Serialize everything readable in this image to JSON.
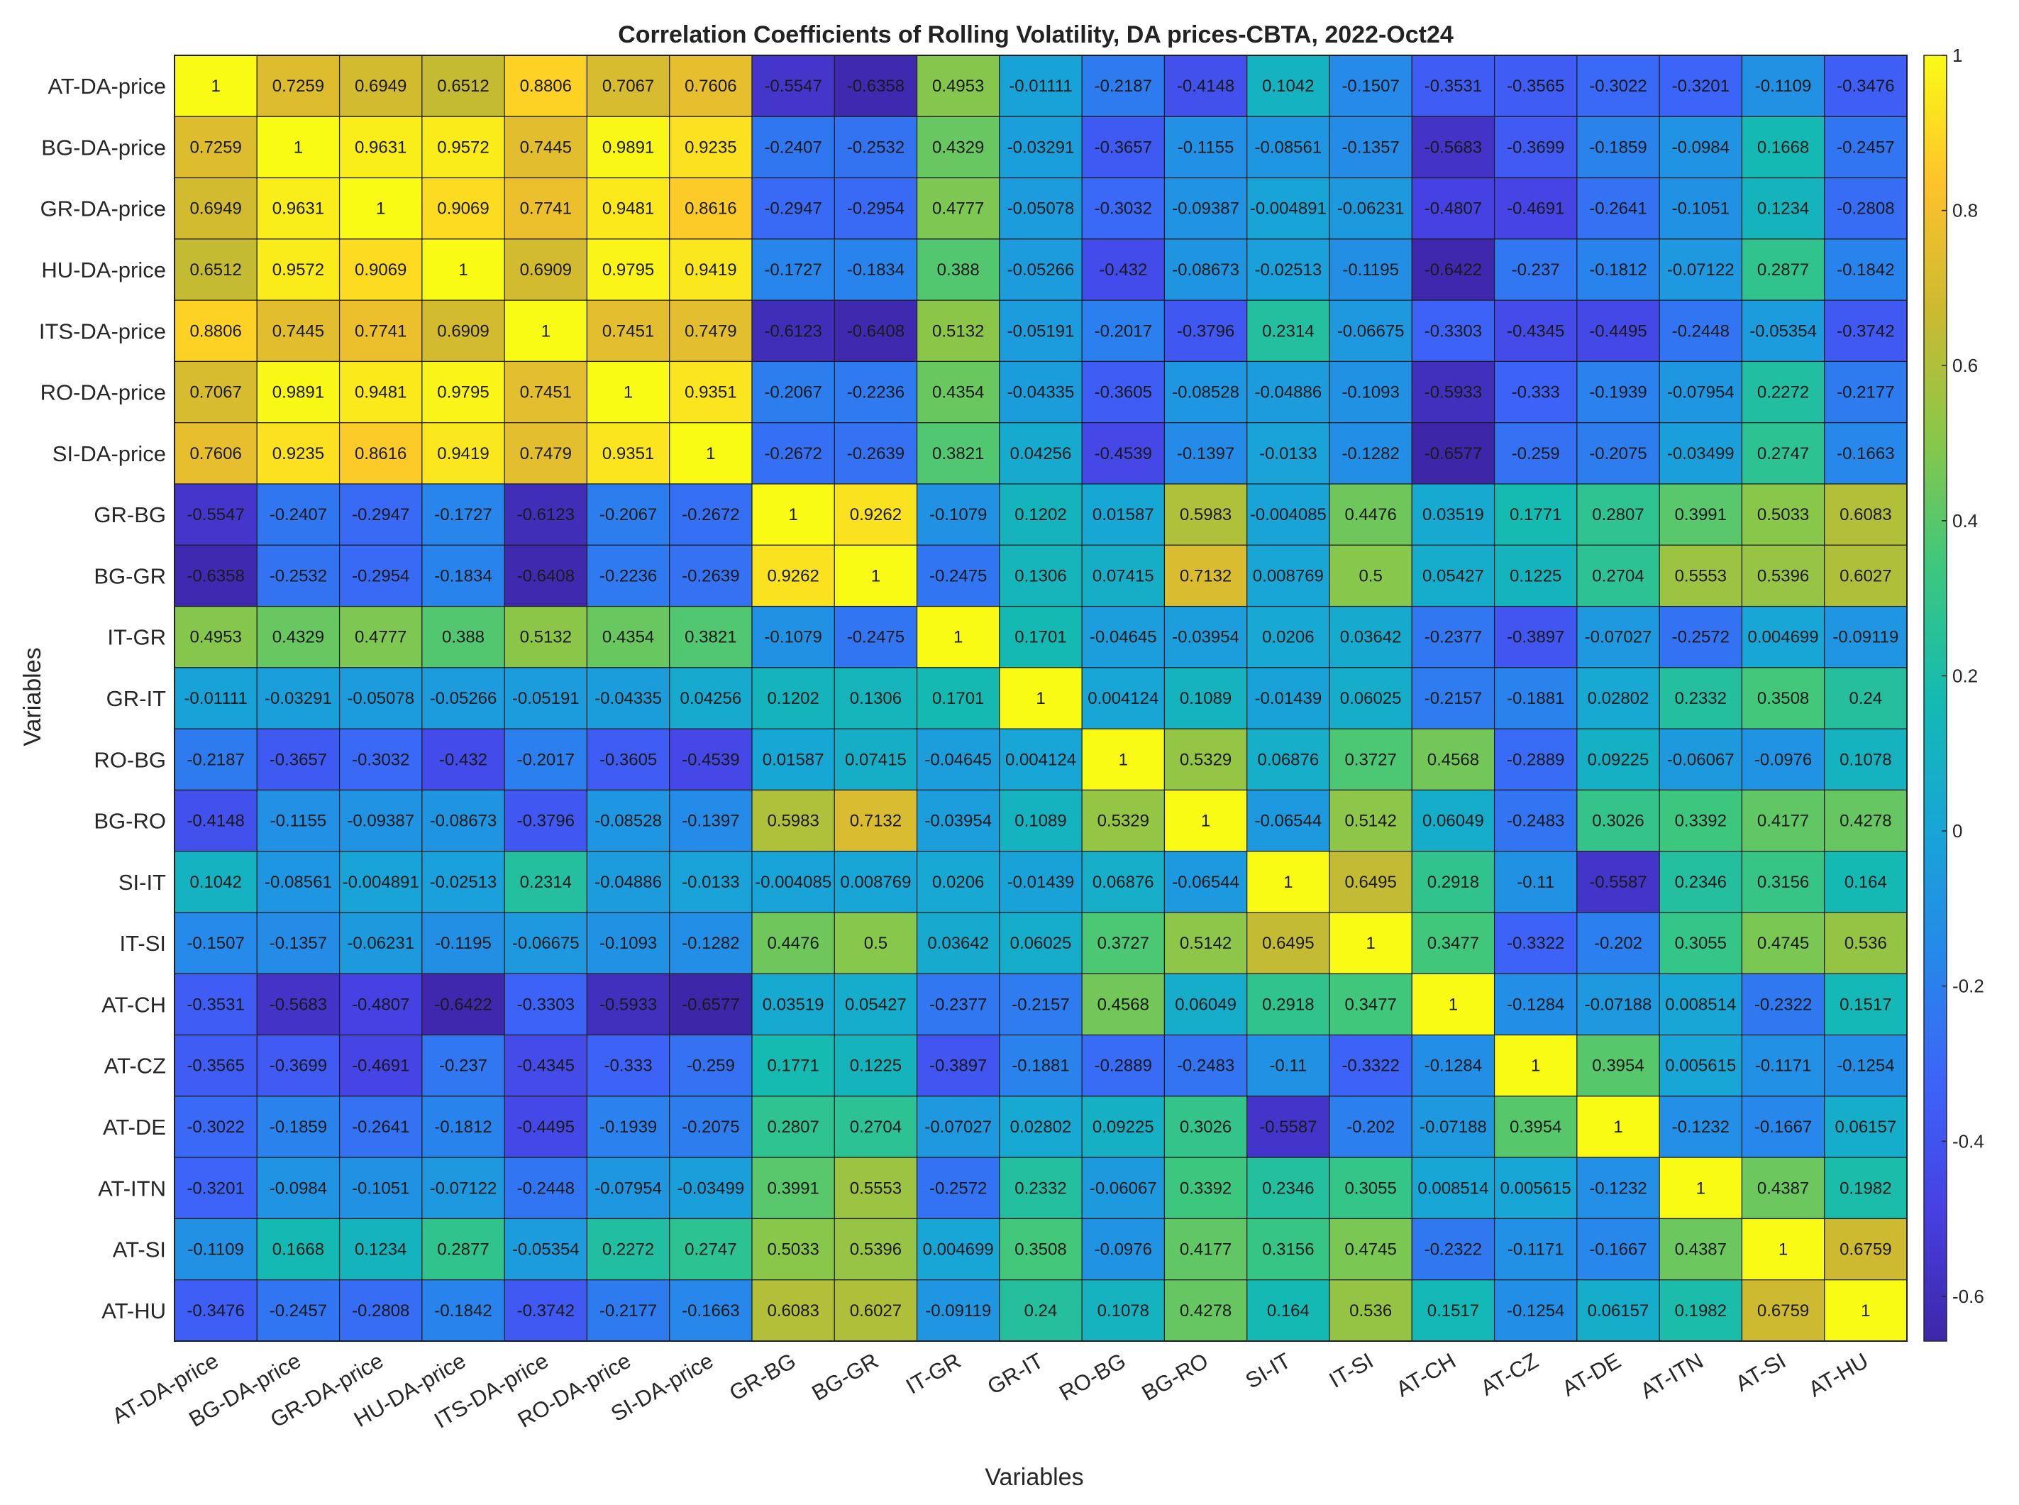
{
  "chart_data": {
    "type": "heatmap",
    "title": "Correlation Coefficients of Rolling Volatility, DA prices-CBTA, 2022-Oct24",
    "xlabel": "Variables",
    "ylabel": "Variables",
    "labels": [
      "AT-DA-price",
      "BG-DA-price",
      "GR-DA-price",
      "HU-DA-price",
      "ITS-DA-price",
      "RO-DA-price",
      "SI-DA-price",
      "GR-BG",
      "BG-GR",
      "IT-GR",
      "GR-IT",
      "RO-BG",
      "BG-RO",
      "SI-IT",
      "IT-SI",
      "AT-CH",
      "AT-CZ",
      "AT-DE",
      "AT-ITN",
      "AT-SI",
      "AT-HU"
    ],
    "matrix": [
      [
        "1",
        "0.7259",
        "0.6949",
        "0.6512",
        "0.8806",
        "0.7067",
        "0.7606",
        "-0.5547",
        "-0.6358",
        "0.4953",
        "-0.01111",
        "-0.2187",
        "-0.4148",
        "0.1042",
        "-0.1507",
        "-0.3531",
        "-0.3565",
        "-0.3022",
        "-0.3201",
        "-0.1109",
        "-0.3476"
      ],
      [
        "0.7259",
        "1",
        "0.9631",
        "0.9572",
        "0.7445",
        "0.9891",
        "0.9235",
        "-0.2407",
        "-0.2532",
        "0.4329",
        "-0.03291",
        "-0.3657",
        "-0.1155",
        "-0.08561",
        "-0.1357",
        "-0.5683",
        "-0.3699",
        "-0.1859",
        "-0.0984",
        "0.1668",
        "-0.2457"
      ],
      [
        "0.6949",
        "0.9631",
        "1",
        "0.9069",
        "0.7741",
        "0.9481",
        "0.8616",
        "-0.2947",
        "-0.2954",
        "0.4777",
        "-0.05078",
        "-0.3032",
        "-0.09387",
        "-0.004891",
        "-0.06231",
        "-0.4807",
        "-0.4691",
        "-0.2641",
        "-0.1051",
        "0.1234",
        "-0.2808"
      ],
      [
        "0.6512",
        "0.9572",
        "0.9069",
        "1",
        "0.6909",
        "0.9795",
        "0.9419",
        "-0.1727",
        "-0.1834",
        "0.388",
        "-0.05266",
        "-0.432",
        "-0.08673",
        "-0.02513",
        "-0.1195",
        "-0.6422",
        "-0.237",
        "-0.1812",
        "-0.07122",
        "0.2877",
        "-0.1842"
      ],
      [
        "0.8806",
        "0.7445",
        "0.7741",
        "0.6909",
        "1",
        "0.7451",
        "0.7479",
        "-0.6123",
        "-0.6408",
        "0.5132",
        "-0.05191",
        "-0.2017",
        "-0.3796",
        "0.2314",
        "-0.06675",
        "-0.3303",
        "-0.4345",
        "-0.4495",
        "-0.2448",
        "-0.05354",
        "-0.3742"
      ],
      [
        "0.7067",
        "0.9891",
        "0.9481",
        "0.9795",
        "0.7451",
        "1",
        "0.9351",
        "-0.2067",
        "-0.2236",
        "0.4354",
        "-0.04335",
        "-0.3605",
        "-0.08528",
        "-0.04886",
        "-0.1093",
        "-0.5933",
        "-0.333",
        "-0.1939",
        "-0.07954",
        "0.2272",
        "-0.2177"
      ],
      [
        "0.7606",
        "0.9235",
        "0.8616",
        "0.9419",
        "0.7479",
        "0.9351",
        "1",
        "-0.2672",
        "-0.2639",
        "0.3821",
        "0.04256",
        "-0.4539",
        "-0.1397",
        "-0.0133",
        "-0.1282",
        "-0.6577",
        "-0.259",
        "-0.2075",
        "-0.03499",
        "0.2747",
        "-0.1663"
      ],
      [
        "-0.5547",
        "-0.2407",
        "-0.2947",
        "-0.1727",
        "-0.6123",
        "-0.2067",
        "-0.2672",
        "1",
        "0.9262",
        "-0.1079",
        "0.1202",
        "0.01587",
        "0.5983",
        "-0.004085",
        "0.4476",
        "0.03519",
        "0.1771",
        "0.2807",
        "0.3991",
        "0.5033",
        "0.6083"
      ],
      [
        "-0.6358",
        "-0.2532",
        "-0.2954",
        "-0.1834",
        "-0.6408",
        "-0.2236",
        "-0.2639",
        "0.9262",
        "1",
        "-0.2475",
        "0.1306",
        "0.07415",
        "0.7132",
        "0.008769",
        "0.5",
        "0.05427",
        "0.1225",
        "0.2704",
        "0.5553",
        "0.5396",
        "0.6027"
      ],
      [
        "0.4953",
        "0.4329",
        "0.4777",
        "0.388",
        "0.5132",
        "0.4354",
        "0.3821",
        "-0.1079",
        "-0.2475",
        "1",
        "0.1701",
        "-0.04645",
        "-0.03954",
        "0.0206",
        "0.03642",
        "-0.2377",
        "-0.3897",
        "-0.07027",
        "-0.2572",
        "0.004699",
        "-0.09119"
      ],
      [
        "-0.01111",
        "-0.03291",
        "-0.05078",
        "-0.05266",
        "-0.05191",
        "-0.04335",
        "0.04256",
        "0.1202",
        "0.1306",
        "0.1701",
        "1",
        "0.004124",
        "0.1089",
        "-0.01439",
        "0.06025",
        "-0.2157",
        "-0.1881",
        "0.02802",
        "0.2332",
        "0.3508",
        "0.24"
      ],
      [
        "-0.2187",
        "-0.3657",
        "-0.3032",
        "-0.432",
        "-0.2017",
        "-0.3605",
        "-0.4539",
        "0.01587",
        "0.07415",
        "-0.04645",
        "0.004124",
        "1",
        "0.5329",
        "0.06876",
        "0.3727",
        "0.4568",
        "-0.2889",
        "0.09225",
        "-0.06067",
        "-0.0976",
        "0.1078"
      ],
      [
        "-0.4148",
        "-0.1155",
        "-0.09387",
        "-0.08673",
        "-0.3796",
        "-0.08528",
        "-0.1397",
        "0.5983",
        "0.7132",
        "-0.03954",
        "0.1089",
        "0.5329",
        "1",
        "-0.06544",
        "0.5142",
        "0.06049",
        "-0.2483",
        "0.3026",
        "0.3392",
        "0.4177",
        "0.4278"
      ],
      [
        "0.1042",
        "-0.08561",
        "-0.004891",
        "-0.02513",
        "0.2314",
        "-0.04886",
        "-0.0133",
        "-0.004085",
        "0.008769",
        "0.0206",
        "-0.01439",
        "0.06876",
        "-0.06544",
        "1",
        "0.6495",
        "0.2918",
        "-0.11",
        "-0.5587",
        "0.2346",
        "0.3156",
        "0.164"
      ],
      [
        "-0.1507",
        "-0.1357",
        "-0.06231",
        "-0.1195",
        "-0.06675",
        "-0.1093",
        "-0.1282",
        "0.4476",
        "0.5",
        "0.03642",
        "0.06025",
        "0.3727",
        "0.5142",
        "0.6495",
        "1",
        "0.3477",
        "-0.3322",
        "-0.202",
        "0.3055",
        "0.4745",
        "0.536"
      ],
      [
        "-0.3531",
        "-0.5683",
        "-0.4807",
        "-0.6422",
        "-0.3303",
        "-0.5933",
        "-0.6577",
        "0.03519",
        "0.05427",
        "-0.2377",
        "-0.2157",
        "0.4568",
        "0.06049",
        "0.2918",
        "0.3477",
        "1",
        "-0.1284",
        "-0.07188",
        "0.008514",
        "-0.2322",
        "0.1517"
      ],
      [
        "-0.3565",
        "-0.3699",
        "-0.4691",
        "-0.237",
        "-0.4345",
        "-0.333",
        "-0.259",
        "0.1771",
        "0.1225",
        "-0.3897",
        "-0.1881",
        "-0.2889",
        "-0.2483",
        "-0.11",
        "-0.3322",
        "-0.1284",
        "1",
        "0.3954",
        "0.005615",
        "-0.1171",
        "-0.1254"
      ],
      [
        "-0.3022",
        "-0.1859",
        "-0.2641",
        "-0.1812",
        "-0.4495",
        "-0.1939",
        "-0.2075",
        "0.2807",
        "0.2704",
        "-0.07027",
        "0.02802",
        "0.09225",
        "0.3026",
        "-0.5587",
        "-0.202",
        "-0.07188",
        "0.3954",
        "1",
        "-0.1232",
        "-0.1667",
        "0.06157"
      ],
      [
        "-0.3201",
        "-0.0984",
        "-0.1051",
        "-0.07122",
        "-0.2448",
        "-0.07954",
        "-0.03499",
        "0.3991",
        "0.5553",
        "-0.2572",
        "0.2332",
        "-0.06067",
        "0.3392",
        "0.2346",
        "0.3055",
        "0.008514",
        "0.005615",
        "-0.1232",
        "1",
        "0.4387",
        "0.1982"
      ],
      [
        "-0.1109",
        "0.1668",
        "0.1234",
        "0.2877",
        "-0.05354",
        "0.2272",
        "0.2747",
        "0.5033",
        "0.5396",
        "0.004699",
        "0.3508",
        "-0.0976",
        "0.4177",
        "0.3156",
        "0.4745",
        "-0.2322",
        "-0.1171",
        "-0.1667",
        "0.4387",
        "1",
        "0.6759"
      ],
      [
        "-0.3476",
        "-0.2457",
        "-0.2808",
        "-0.1842",
        "-0.3742",
        "-0.2177",
        "-0.1663",
        "0.6083",
        "0.6027",
        "-0.09119",
        "0.24",
        "0.1078",
        "0.4278",
        "0.164",
        "0.536",
        "0.1517",
        "-0.1254",
        "0.06157",
        "0.1982",
        "0.6759",
        "1"
      ]
    ],
    "colorbar": {
      "colormap": "parula",
      "range": [
        -0.6577,
        1
      ],
      "ticks": [
        -0.6,
        -0.4,
        -0.2,
        0,
        0.2,
        0.4,
        0.6,
        0.8,
        1
      ],
      "tick_labels": [
        "-0.6",
        "-0.4",
        "-0.2",
        "0",
        "0.2",
        "0.4",
        "0.6",
        "0.8",
        "1"
      ]
    }
  }
}
